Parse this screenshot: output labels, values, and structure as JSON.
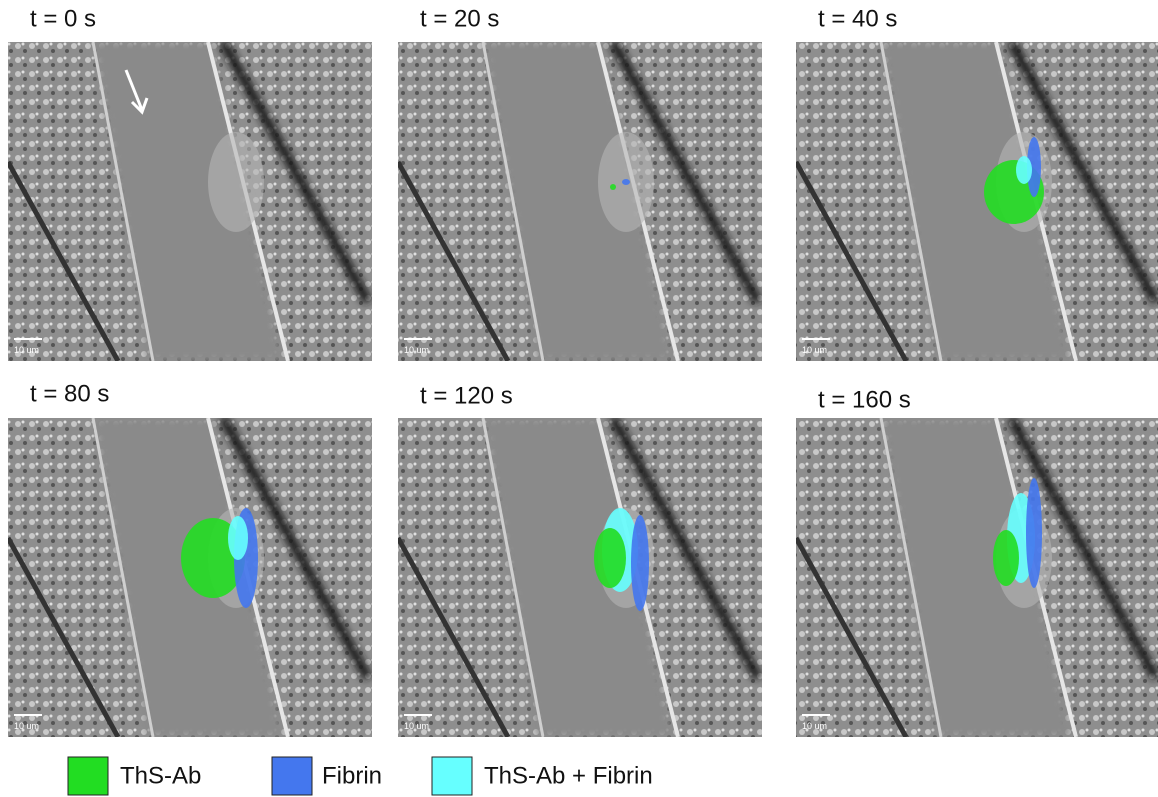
{
  "panels": [
    {
      "label": "t = 0 s",
      "scale_label": "10 um"
    },
    {
      "label": "t = 20 s",
      "scale_label": "10 um"
    },
    {
      "label": "t = 40 s",
      "scale_label": "10 um"
    },
    {
      "label": "t = 80 s",
      "scale_label": "10 um"
    },
    {
      "label": "t = 120 s",
      "scale_label": "10 um"
    },
    {
      "label": "t = 160 s",
      "scale_label": "10 um"
    }
  ],
  "legend": {
    "items": [
      {
        "label": "ThS-Ab",
        "color": "#22dd22"
      },
      {
        "label": "Fibrin",
        "color": "#4477ee"
      },
      {
        "label": "ThS-Ab + Fibrin",
        "color": "#66ffff"
      }
    ]
  }
}
